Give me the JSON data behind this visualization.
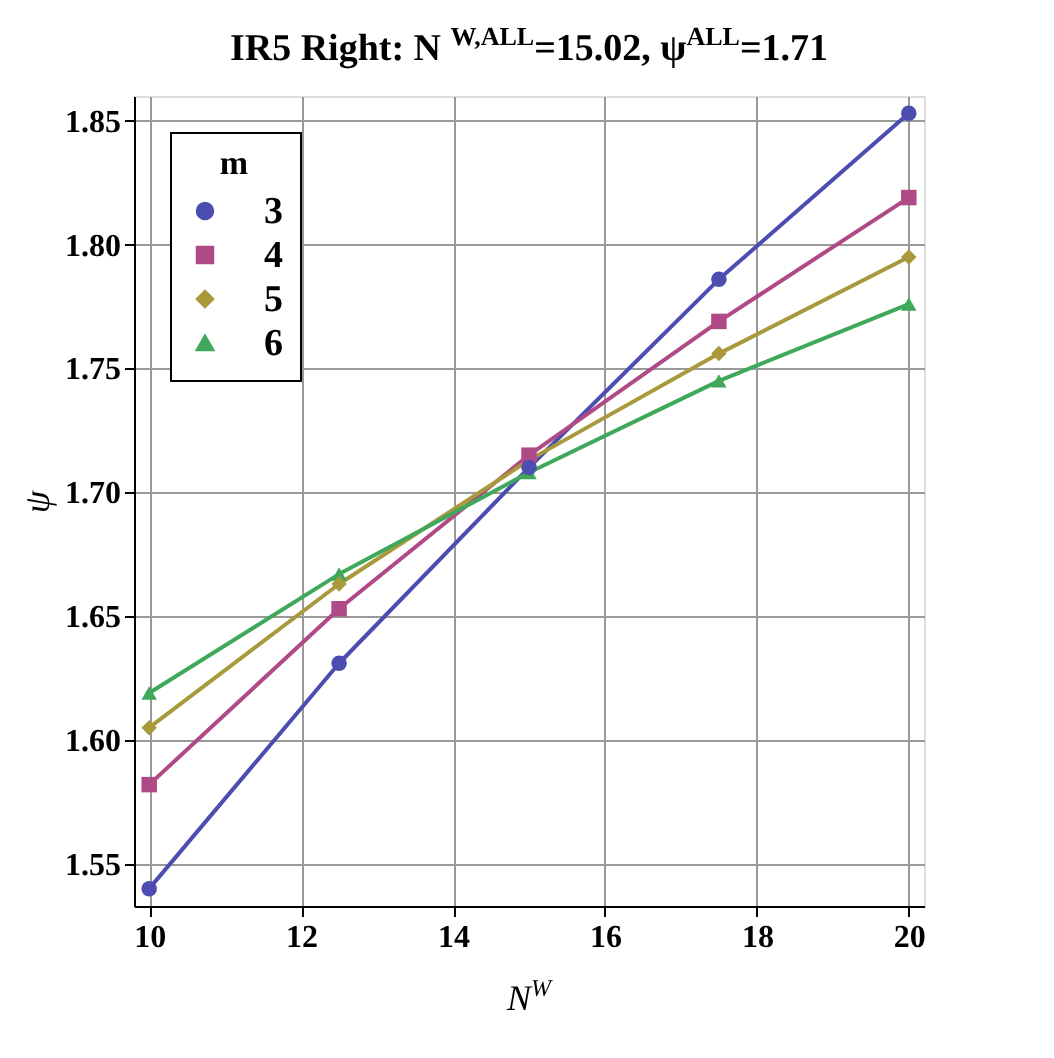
{
  "chart_data": {
    "type": "line",
    "title": "IR5 Right:  N$^{W,ALL}$=15.02, ψ$^{ALL}$=1.71",
    "xlabel": "N$^{W}$",
    "ylabel": "ψ",
    "legend_title": "m",
    "x": [
      10,
      12.5,
      15,
      17.5,
      20
    ],
    "series": [
      {
        "name": "3",
        "color": "#4b4db0",
        "marker": "circle",
        "values": [
          1.54,
          1.631,
          1.71,
          1.786,
          1.853
        ]
      },
      {
        "name": "4",
        "color": "#b04a86",
        "marker": "square",
        "values": [
          1.582,
          1.653,
          1.715,
          1.769,
          1.819
        ]
      },
      {
        "name": "5",
        "color": "#a89a3c",
        "marker": "diamond",
        "values": [
          1.605,
          1.663,
          1.713,
          1.756,
          1.795
        ]
      },
      {
        "name": "6",
        "color": "#3fa85a",
        "marker": "triangle",
        "values": [
          1.619,
          1.667,
          1.708,
          1.745,
          1.776
        ]
      }
    ],
    "xlim": [
      9.8,
      20.2
    ],
    "ylim": [
      1.533,
      1.86
    ],
    "xticks": [
      10,
      12,
      14,
      16,
      18,
      20
    ],
    "yticks": [
      1.55,
      {
        "value": 1.6,
        "label": "1.60"
      },
      1.65,
      {
        "value": 1.7,
        "label": "1.70"
      },
      1.75,
      {
        "value": 1.8,
        "label": "1.80"
      },
      1.85
    ],
    "grid": true,
    "legend": "top left",
    "line_style": "solid"
  }
}
